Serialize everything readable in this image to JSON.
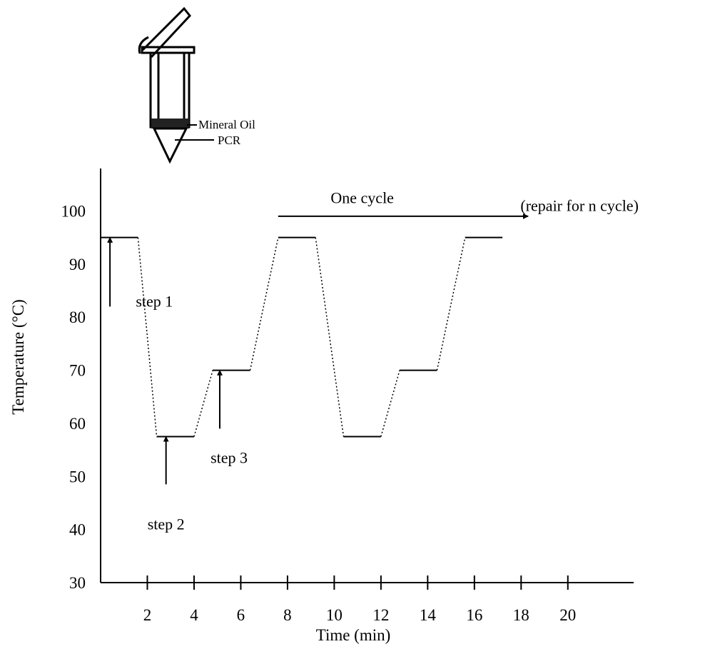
{
  "chart_data": {
    "type": "line",
    "xlabel": "Time (min)",
    "ylabel": "Temperature (°C)",
    "xlim": [
      0,
      23
    ],
    "ylim": [
      30,
      108
    ],
    "x_ticks": [
      2,
      4,
      6,
      8,
      10,
      12,
      14,
      16,
      18,
      20
    ],
    "y_ticks": [
      30,
      40,
      50,
      60,
      70,
      80,
      90,
      100
    ],
    "series": [
      {
        "points": [
          [
            0,
            95
          ],
          [
            1.6,
            95
          ],
          [
            2.4,
            57.5
          ],
          [
            4.0,
            57.5
          ],
          [
            4.8,
            70
          ],
          [
            6.4,
            70
          ],
          [
            7.6,
            95
          ],
          [
            9.2,
            95
          ],
          [
            10.4,
            57.5
          ],
          [
            12.0,
            57.5
          ],
          [
            12.8,
            70
          ],
          [
            14.4,
            70
          ],
          [
            15.6,
            95
          ],
          [
            17.2,
            95
          ]
        ]
      }
    ],
    "annotations": [
      {
        "text": "step 1",
        "x": 2.3,
        "y": 82
      },
      {
        "text": "step 2",
        "x": 2.8,
        "y": 40
      },
      {
        "text": "step 3",
        "x": 5.5,
        "y": 52.5
      },
      {
        "text": "One cycle",
        "x": 11.2,
        "y": 101.5
      },
      {
        "text": "(repair for n cycle)",
        "x": 20.5,
        "y": 100
      }
    ],
    "arrows": [
      {
        "name": "step-1-arrow",
        "from": [
          0.4,
          82
        ],
        "to": [
          0.4,
          95
        ]
      },
      {
        "name": "step-2-arrow",
        "from": [
          2.8,
          48.5
        ],
        "to": [
          2.8,
          57.5
        ]
      },
      {
        "name": "step-3-arrow",
        "from": [
          5.1,
          59
        ],
        "to": [
          5.1,
          70
        ]
      },
      {
        "name": "one-cycle-arrow",
        "from": [
          7.6,
          99
        ],
        "to": [
          18.3,
          99
        ]
      }
    ],
    "grid": false
  },
  "tube": {
    "label_oil": "Mineral Oil",
    "label_pcr": "PCR"
  }
}
